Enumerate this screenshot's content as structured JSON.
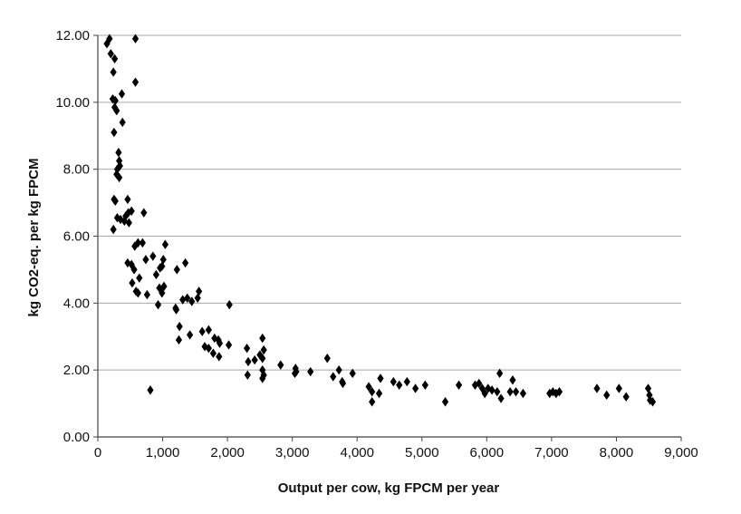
{
  "chart_data": {
    "type": "scatter",
    "title": "",
    "xlabel": "Output per cow, kg FPCM per year",
    "ylabel": "kg CO2-eq. per kg FPCM",
    "xlim": [
      0,
      9000
    ],
    "ylim": [
      0,
      12
    ],
    "x_ticks": [
      "0",
      "1,000",
      "2,000",
      "3,000",
      "4,000",
      "5,000",
      "6,000",
      "7,000",
      "8,000",
      "9,000"
    ],
    "y_ticks": [
      "0.00",
      "2.00",
      "4.00",
      "6.00",
      "8.00",
      "10.00",
      "12.00"
    ],
    "grid": "horizontal",
    "legend": "none",
    "colors": {
      "marker": "#000000",
      "grid": "#a8a8a8",
      "axis": "#444444"
    },
    "series": [
      {
        "points": [
          [
            140,
            11.75
          ],
          [
            180,
            11.9
          ],
          [
            200,
            11.45
          ],
          [
            260,
            11.3
          ],
          [
            580,
            11.9
          ],
          [
            580,
            10.6
          ],
          [
            240,
            10.9
          ],
          [
            230,
            10.1
          ],
          [
            270,
            10.05
          ],
          [
            260,
            9.85
          ],
          [
            290,
            9.75
          ],
          [
            250,
            9.1
          ],
          [
            370,
            10.25
          ],
          [
            380,
            9.4
          ],
          [
            320,
            8.5
          ],
          [
            330,
            8.25
          ],
          [
            340,
            8.1
          ],
          [
            300,
            8.0
          ],
          [
            290,
            7.85
          ],
          [
            330,
            7.75
          ],
          [
            250,
            7.1
          ],
          [
            270,
            7.05
          ],
          [
            460,
            7.1
          ],
          [
            710,
            6.7
          ],
          [
            300,
            6.55
          ],
          [
            430,
            6.6
          ],
          [
            470,
            6.7
          ],
          [
            520,
            6.75
          ],
          [
            350,
            6.5
          ],
          [
            410,
            6.45
          ],
          [
            240,
            6.2
          ],
          [
            480,
            6.4
          ],
          [
            460,
            5.2
          ],
          [
            520,
            5.15
          ],
          [
            570,
            5.7
          ],
          [
            620,
            5.8
          ],
          [
            690,
            5.8
          ],
          [
            560,
            5.0
          ],
          [
            640,
            4.75
          ],
          [
            740,
            5.3
          ],
          [
            530,
            4.6
          ],
          [
            590,
            4.35
          ],
          [
            620,
            4.3
          ],
          [
            760,
            4.25
          ],
          [
            850,
            5.4
          ],
          [
            900,
            4.85
          ],
          [
            960,
            5.05
          ],
          [
            950,
            4.45
          ],
          [
            990,
            5.1
          ],
          [
            1010,
            5.3
          ],
          [
            1040,
            5.75
          ],
          [
            990,
            4.3
          ],
          [
            930,
            3.95
          ],
          [
            1020,
            4.5
          ],
          [
            1220,
            5.0
          ],
          [
            1350,
            5.2
          ],
          [
            1380,
            4.15
          ],
          [
            1200,
            3.85
          ],
          [
            1210,
            3.8
          ],
          [
            1310,
            4.1
          ],
          [
            1450,
            4.05
          ],
          [
            1540,
            4.15
          ],
          [
            1560,
            4.35
          ],
          [
            2030,
            3.95
          ],
          [
            1260,
            3.3
          ],
          [
            1250,
            2.9
          ],
          [
            1420,
            3.05
          ],
          [
            1610,
            3.15
          ],
          [
            1710,
            3.2
          ],
          [
            1800,
            2.95
          ],
          [
            1860,
            2.9
          ],
          [
            1650,
            2.7
          ],
          [
            1710,
            2.65
          ],
          [
            1880,
            2.8
          ],
          [
            1780,
            2.5
          ],
          [
            1870,
            2.4
          ],
          [
            2020,
            2.75
          ],
          [
            2300,
            2.65
          ],
          [
            2320,
            2.25
          ],
          [
            2420,
            2.3
          ],
          [
            2540,
            2.95
          ],
          [
            2560,
            2.6
          ],
          [
            2500,
            2.45
          ],
          [
            2540,
            2.35
          ],
          [
            2310,
            1.85
          ],
          [
            2540,
            2.0
          ],
          [
            2560,
            1.85
          ],
          [
            2540,
            1.75
          ],
          [
            2820,
            2.15
          ],
          [
            3050,
            2.05
          ],
          [
            3060,
            1.95
          ],
          [
            3280,
            1.95
          ],
          [
            3540,
            2.35
          ],
          [
            3720,
            2.0
          ],
          [
            3630,
            1.8
          ],
          [
            3770,
            1.65
          ],
          [
            3780,
            1.6
          ],
          [
            3930,
            1.9
          ],
          [
            3040,
            1.9
          ],
          [
            810,
            1.4
          ],
          [
            4180,
            1.5
          ],
          [
            4230,
            1.35
          ],
          [
            4230,
            1.05
          ],
          [
            4340,
            1.3
          ],
          [
            4360,
            1.75
          ],
          [
            4560,
            1.65
          ],
          [
            4650,
            1.55
          ],
          [
            4770,
            1.65
          ],
          [
            4900,
            1.45
          ],
          [
            5050,
            1.55
          ],
          [
            5360,
            1.05
          ],
          [
            5570,
            1.55
          ],
          [
            5820,
            1.55
          ],
          [
            5880,
            1.6
          ],
          [
            5930,
            1.45
          ],
          [
            5970,
            1.3
          ],
          [
            6020,
            1.45
          ],
          [
            6080,
            1.4
          ],
          [
            6160,
            1.35
          ],
          [
            6200,
            1.9
          ],
          [
            6220,
            1.15
          ],
          [
            6360,
            1.35
          ],
          [
            6400,
            1.7
          ],
          [
            6450,
            1.35
          ],
          [
            6560,
            1.3
          ],
          [
            6970,
            1.3
          ],
          [
            7020,
            1.35
          ],
          [
            7070,
            1.3
          ],
          [
            7120,
            1.35
          ],
          [
            7700,
            1.45
          ],
          [
            7850,
            1.25
          ],
          [
            8040,
            1.45
          ],
          [
            8150,
            1.2
          ],
          [
            8490,
            1.45
          ],
          [
            8510,
            1.25
          ],
          [
            8520,
            1.1
          ],
          [
            8560,
            1.05
          ]
        ]
      }
    ]
  }
}
